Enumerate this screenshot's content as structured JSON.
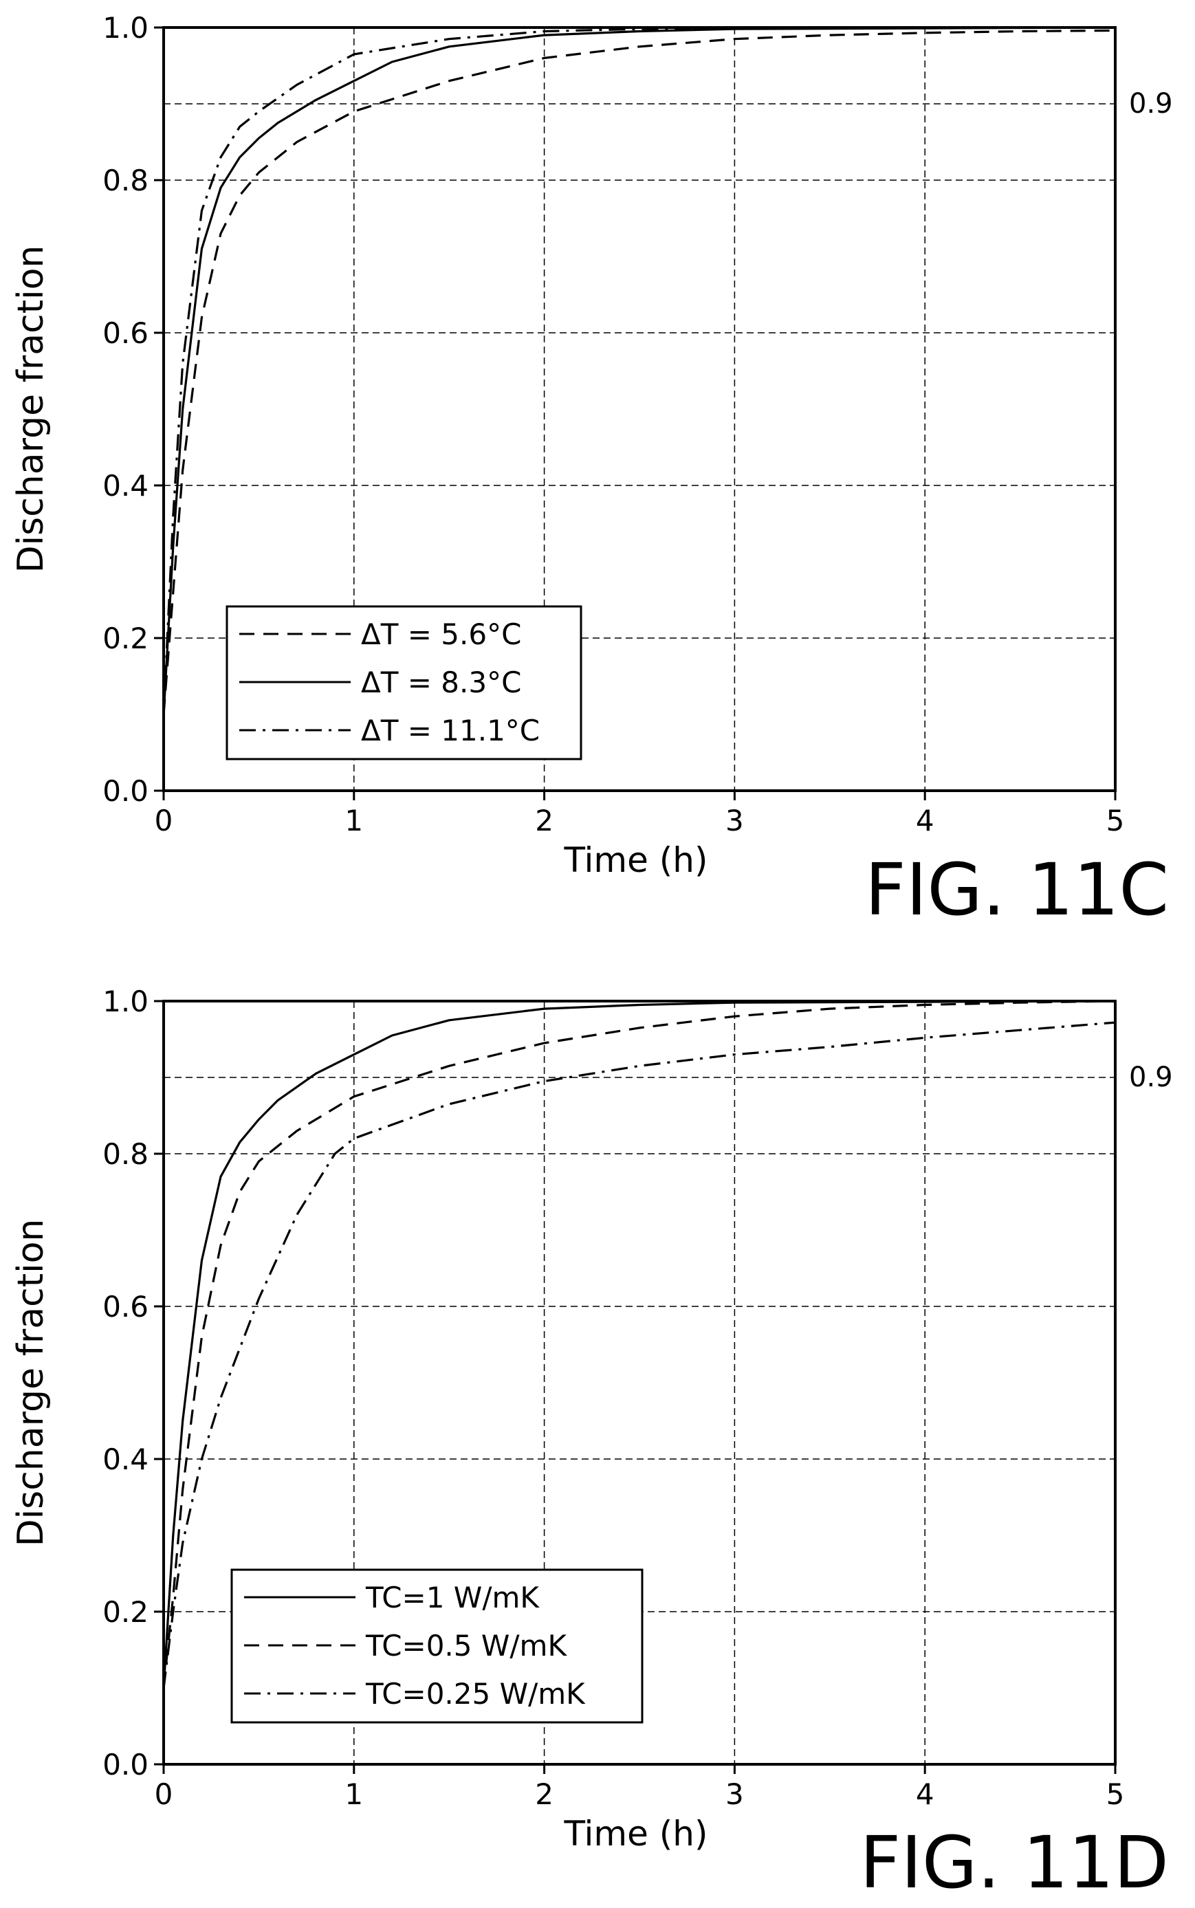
{
  "chart_data": [
    {
      "type": "line",
      "figure_label": "FIG. 11C",
      "xlabel": "Time (h)",
      "ylabel": "Discharge fraction",
      "xlim": [
        0,
        5
      ],
      "ylim": [
        0,
        1.0
      ],
      "xticks": [
        "0",
        "1",
        "2",
        "3",
        "4",
        "5"
      ],
      "yticks": [
        "0.0",
        "0.2",
        "0.4",
        "0.6",
        "0.8",
        "1.0"
      ],
      "grid": true,
      "legend_position": "bottom-left",
      "reference_line": {
        "y": 0.9,
        "label": "0.9"
      },
      "series": [
        {
          "name": "ΔT = 5.6°C",
          "style": "dashed",
          "x": [
            0,
            0.05,
            0.1,
            0.2,
            0.3,
            0.4,
            0.5,
            0.7,
            1.0,
            1.5,
            2.0,
            2.5,
            3.0,
            3.5,
            4.0,
            4.5,
            5.0
          ],
          "y": [
            0.1,
            0.26,
            0.42,
            0.62,
            0.73,
            0.78,
            0.81,
            0.85,
            0.89,
            0.93,
            0.96,
            0.975,
            0.985,
            0.99,
            0.993,
            0.995,
            0.996
          ]
        },
        {
          "name": "ΔT = 8.3°C",
          "style": "solid",
          "x": [
            0,
            0.05,
            0.1,
            0.2,
            0.3,
            0.4,
            0.5,
            0.6,
            0.8,
            1.0,
            1.2,
            1.5,
            2.0,
            2.5,
            3.0,
            4.0,
            5.0
          ],
          "y": [
            0.1,
            0.32,
            0.5,
            0.71,
            0.79,
            0.83,
            0.855,
            0.875,
            0.905,
            0.93,
            0.955,
            0.975,
            0.99,
            0.995,
            0.998,
            0.999,
            1.0
          ]
        },
        {
          "name": "ΔT = 11.1°C",
          "style": "dashdot",
          "x": [
            0,
            0.05,
            0.1,
            0.2,
            0.3,
            0.4,
            0.5,
            0.7,
            1.0,
            1.5,
            2.0,
            2.5,
            3.0,
            4.0,
            5.0
          ],
          "y": [
            0.1,
            0.36,
            0.56,
            0.76,
            0.83,
            0.87,
            0.89,
            0.925,
            0.965,
            0.985,
            0.995,
            0.998,
            0.999,
            1.0,
            1.0
          ]
        }
      ]
    },
    {
      "type": "line",
      "figure_label": "FIG. 11D",
      "xlabel": "Time (h)",
      "ylabel": "Discharge fraction",
      "xlim": [
        0,
        5
      ],
      "ylim": [
        0,
        1.0
      ],
      "xticks": [
        "0",
        "1",
        "2",
        "3",
        "4",
        "5"
      ],
      "yticks": [
        "0.0",
        "0.2",
        "0.4",
        "0.6",
        "0.8",
        "1.0"
      ],
      "grid": true,
      "legend_position": "bottom-left",
      "reference_line": {
        "y": 0.9,
        "label": "0.9"
      },
      "series": [
        {
          "name": "TC=1 W/mK",
          "style": "solid",
          "x": [
            0,
            0.05,
            0.1,
            0.2,
            0.3,
            0.4,
            0.5,
            0.6,
            0.8,
            1.0,
            1.2,
            1.5,
            2.0,
            2.5,
            3.0,
            4.0,
            5.0
          ],
          "y": [
            0.1,
            0.3,
            0.45,
            0.66,
            0.77,
            0.815,
            0.845,
            0.87,
            0.905,
            0.93,
            0.955,
            0.975,
            0.99,
            0.995,
            0.998,
            0.999,
            1.0
          ]
        },
        {
          "name": "TC=0.5 W/mK",
          "style": "dashed",
          "x": [
            0,
            0.05,
            0.1,
            0.2,
            0.3,
            0.4,
            0.5,
            0.7,
            1.0,
            1.5,
            2.0,
            2.5,
            3.0,
            3.5,
            4.0,
            4.5,
            5.0
          ],
          "y": [
            0.1,
            0.22,
            0.36,
            0.56,
            0.68,
            0.75,
            0.79,
            0.83,
            0.875,
            0.915,
            0.945,
            0.965,
            0.98,
            0.99,
            0.995,
            0.998,
            1.0
          ]
        },
        {
          "name": "TC=0.25 W/mK",
          "style": "dashdot",
          "x": [
            0,
            0.05,
            0.1,
            0.2,
            0.3,
            0.5,
            0.7,
            0.9,
            1.0,
            1.5,
            2.0,
            2.5,
            3.0,
            3.5,
            4.0,
            4.5,
            5.0
          ],
          "y": [
            0.1,
            0.2,
            0.29,
            0.4,
            0.48,
            0.61,
            0.72,
            0.8,
            0.82,
            0.865,
            0.895,
            0.915,
            0.93,
            0.94,
            0.952,
            0.962,
            0.972
          ]
        }
      ]
    }
  ]
}
